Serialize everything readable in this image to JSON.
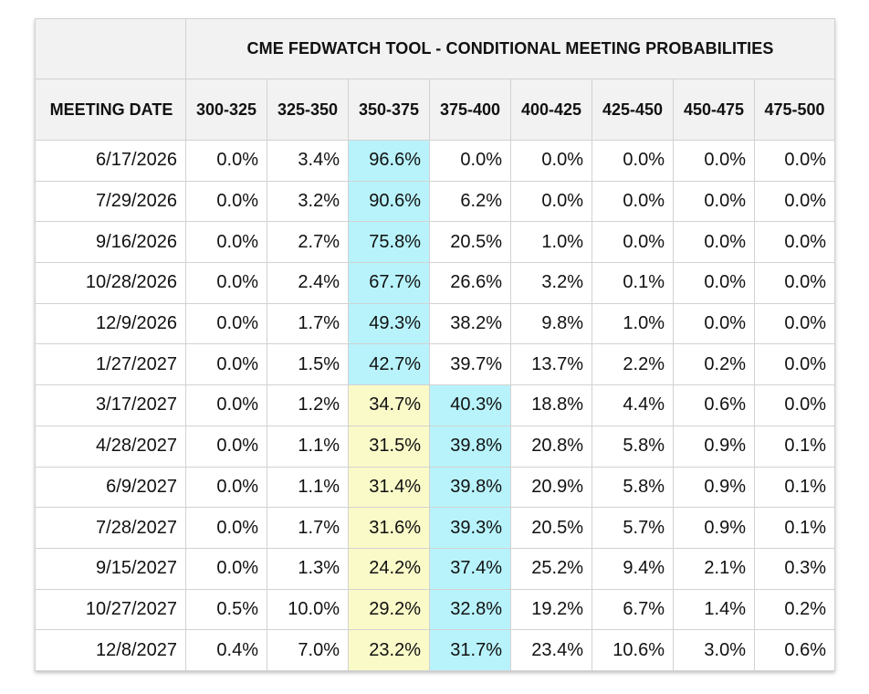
{
  "table": {
    "title": "CME FEDWATCH TOOL - CONDITIONAL MEETING PROBABILITIES",
    "date_header": "MEETING DATE",
    "columns": [
      "300-325",
      "325-350",
      "350-375",
      "375-400",
      "400-425",
      "425-450",
      "450-475",
      "475-500"
    ],
    "highlight_colors": {
      "most_likely": "#b8f3fb",
      "previous": "#fafac9"
    },
    "rows": [
      {
        "date": "6/17/2026",
        "values": [
          "0.0%",
          "3.4%",
          "96.6%",
          "0.0%",
          "0.0%",
          "0.0%",
          "0.0%",
          "0.0%"
        ],
        "highlight": [
          2,
          -1
        ]
      },
      {
        "date": "7/29/2026",
        "values": [
          "0.0%",
          "3.2%",
          "90.6%",
          "6.2%",
          "0.0%",
          "0.0%",
          "0.0%",
          "0.0%"
        ],
        "highlight": [
          2,
          -1
        ]
      },
      {
        "date": "9/16/2026",
        "values": [
          "0.0%",
          "2.7%",
          "75.8%",
          "20.5%",
          "1.0%",
          "0.0%",
          "0.0%",
          "0.0%"
        ],
        "highlight": [
          2,
          -1
        ]
      },
      {
        "date": "10/28/2026",
        "values": [
          "0.0%",
          "2.4%",
          "67.7%",
          "26.6%",
          "3.2%",
          "0.1%",
          "0.0%",
          "0.0%"
        ],
        "highlight": [
          2,
          -1
        ]
      },
      {
        "date": "12/9/2026",
        "values": [
          "0.0%",
          "1.7%",
          "49.3%",
          "38.2%",
          "9.8%",
          "1.0%",
          "0.0%",
          "0.0%"
        ],
        "highlight": [
          2,
          -1
        ]
      },
      {
        "date": "1/27/2027",
        "values": [
          "0.0%",
          "1.5%",
          "42.7%",
          "39.7%",
          "13.7%",
          "2.2%",
          "0.2%",
          "0.0%"
        ],
        "highlight": [
          2,
          -1
        ]
      },
      {
        "date": "3/17/2027",
        "values": [
          "0.0%",
          "1.2%",
          "34.7%",
          "40.3%",
          "18.8%",
          "4.4%",
          "0.6%",
          "0.0%"
        ],
        "highlight": [
          3,
          2
        ]
      },
      {
        "date": "4/28/2027",
        "values": [
          "0.0%",
          "1.1%",
          "31.5%",
          "39.8%",
          "20.8%",
          "5.8%",
          "0.9%",
          "0.1%"
        ],
        "highlight": [
          3,
          2
        ]
      },
      {
        "date": "6/9/2027",
        "values": [
          "0.0%",
          "1.1%",
          "31.4%",
          "39.8%",
          "20.9%",
          "5.8%",
          "0.9%",
          "0.1%"
        ],
        "highlight": [
          3,
          2
        ]
      },
      {
        "date": "7/28/2027",
        "values": [
          "0.0%",
          "1.7%",
          "31.6%",
          "39.3%",
          "20.5%",
          "5.7%",
          "0.9%",
          "0.1%"
        ],
        "highlight": [
          3,
          2
        ]
      },
      {
        "date": "9/15/2027",
        "values": [
          "0.0%",
          "1.3%",
          "24.2%",
          "37.4%",
          "25.2%",
          "9.4%",
          "2.1%",
          "0.3%"
        ],
        "highlight": [
          3,
          2
        ]
      },
      {
        "date": "10/27/2027",
        "values": [
          "0.5%",
          "10.0%",
          "29.2%",
          "32.8%",
          "19.2%",
          "6.7%",
          "1.4%",
          "0.2%"
        ],
        "highlight": [
          3,
          2
        ]
      },
      {
        "date": "12/8/2027",
        "values": [
          "0.4%",
          "7.0%",
          "23.2%",
          "31.7%",
          "23.4%",
          "10.6%",
          "3.0%",
          "0.6%"
        ],
        "highlight": [
          3,
          2
        ]
      }
    ]
  }
}
